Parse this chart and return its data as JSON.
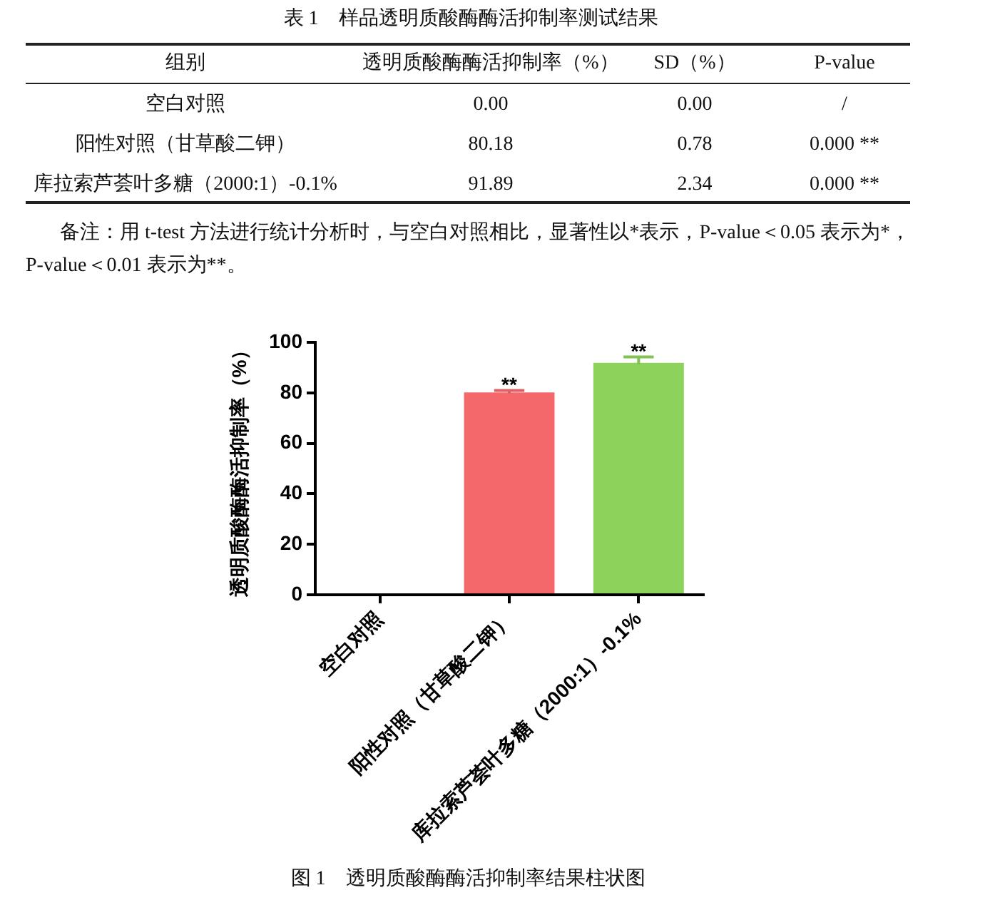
{
  "chart_data": {
    "type": "bar",
    "title": "图 1　透明质酸酶酶活抑制率结果柱状图",
    "categories": [
      "空白对照",
      "阳性对照（甘草酸二钾）",
      "库拉索芦荟叶多糖（2000:1）-0.1%"
    ],
    "values": [
      0,
      80.18,
      91.89
    ],
    "errors": [
      0,
      0.78,
      2.34
    ],
    "colors": [
      null,
      "#f4686b",
      "#8dd35b"
    ],
    "ylabel": "透明质酸酶酶活抑制率（%）",
    "ylim": [
      0,
      100
    ],
    "yticks": [
      0,
      20,
      40,
      60,
      80,
      100
    ],
    "annotations": [
      "表 1　样品透明质酸酶酶活抑制率测试结果",
      "组别",
      "透明质酸酶酶活抑制率（%）",
      "SD（%）",
      "P-value",
      "0.00",
      "0.00",
      "/",
      "80.18",
      "0.78",
      "0.000 **",
      "91.89",
      "2.34",
      "0.000 **",
      "备注：用 t-test 方法进行统计分析时，与空白对照相比，显著性以*表示，P-value＜0.05 表示为*，P-value＜0.01 表示为**。",
      {
        "text": "**",
        "x": "阳性对照（甘草酸二钾）",
        "y": 80.96
      },
      {
        "text": "**",
        "x": "库拉索芦荟叶多糖（2000:1）-0.1%",
        "y": 94.23
      }
    ]
  }
}
